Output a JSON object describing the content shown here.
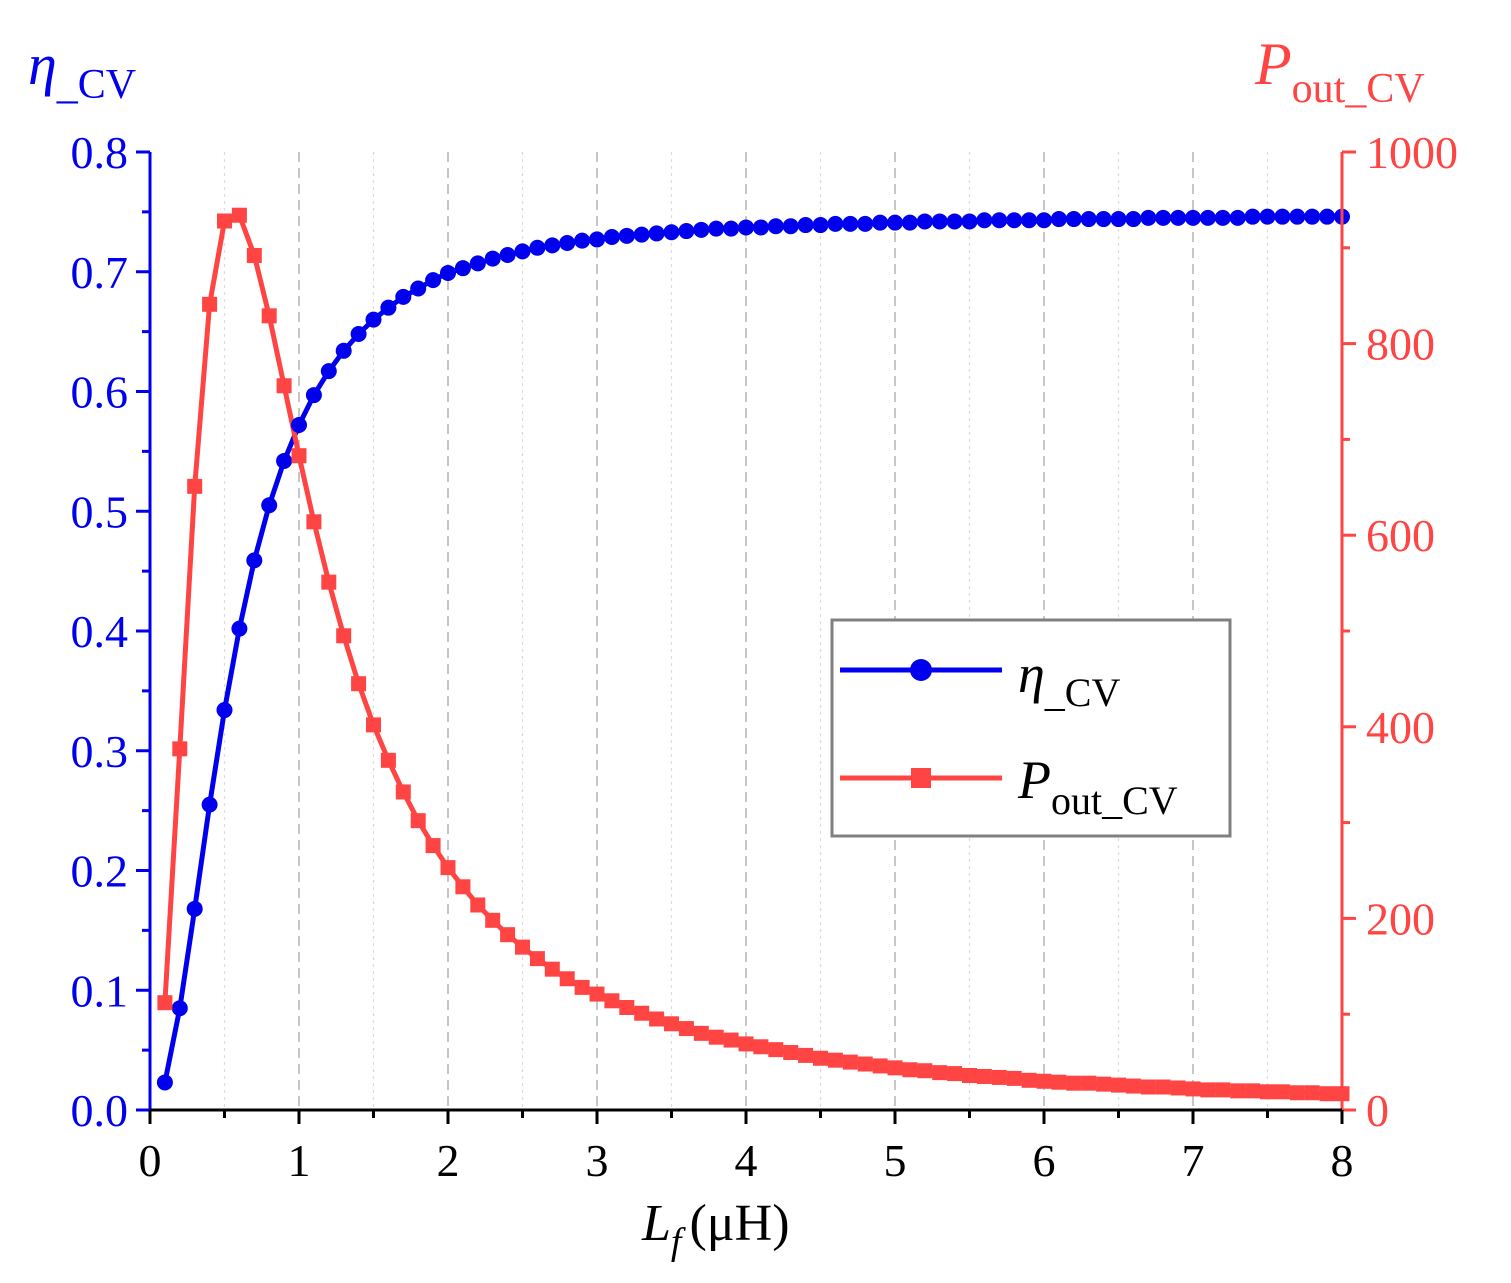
{
  "chart_data": {
    "type": "line",
    "xlabel": {
      "symbol": "L",
      "subscript": "f",
      "unit": "(μH)"
    },
    "xlim": [
      0,
      8
    ],
    "x_ticks": [
      "0",
      "1",
      "2",
      "3",
      "4",
      "5",
      "6",
      "7",
      "8"
    ],
    "y_left": {
      "label": {
        "symbol": "η",
        "subscript": "_CV"
      },
      "range": [
        0,
        0.8
      ],
      "ticks": [
        "0.0",
        "0.1",
        "0.2",
        "0.3",
        "0.4",
        "0.5",
        "0.6",
        "0.7",
        "0.8"
      ],
      "color": "#0000ee"
    },
    "y_right": {
      "label": {
        "symbol": "P",
        "subscript": "out_CV"
      },
      "range": [
        0,
        1000
      ],
      "ticks": [
        "0",
        "200",
        "400",
        "600",
        "800",
        "1000"
      ],
      "color": "#ff4444"
    },
    "grid": "vertical dashed",
    "legend": {
      "position": "center-right",
      "entries": [
        {
          "symbol": "η",
          "subscript": "_CV",
          "series": "eta_CV"
        },
        {
          "symbol": "P",
          "subscript": "out_CV",
          "series": "P_out_CV"
        }
      ]
    },
    "series": [
      {
        "name": "eta_CV",
        "axis": "left",
        "marker": "circle",
        "color": "#0000ee",
        "x": [
          0.1,
          0.2,
          0.3,
          0.4,
          0.5,
          0.6,
          0.7,
          0.8,
          0.9,
          1.0,
          1.1,
          1.2,
          1.3,
          1.4,
          1.5,
          1.6,
          1.7,
          1.8,
          1.9,
          2.0,
          2.1,
          2.2,
          2.3,
          2.4,
          2.5,
          2.6,
          2.7,
          2.8,
          2.9,
          3.0,
          3.1,
          3.2,
          3.3,
          3.4,
          3.5,
          3.6,
          3.7,
          3.8,
          3.9,
          4.0,
          4.1,
          4.2,
          4.3,
          4.4,
          4.5,
          4.6,
          4.7,
          4.8,
          4.9,
          5.0,
          5.1,
          5.2,
          5.3,
          5.4,
          5.5,
          5.6,
          5.7,
          5.8,
          5.9,
          6.0,
          6.1,
          6.2,
          6.3,
          6.4,
          6.5,
          6.6,
          6.7,
          6.8,
          6.9,
          7.0,
          7.1,
          7.2,
          7.3,
          7.4,
          7.5,
          7.6,
          7.7,
          7.8,
          7.9,
          8.0
        ],
        "y": [
          0.023,
          0.085,
          0.168,
          0.255,
          0.334,
          0.402,
          0.459,
          0.505,
          0.542,
          0.572,
          0.597,
          0.617,
          0.634,
          0.648,
          0.66,
          0.67,
          0.679,
          0.686,
          0.693,
          0.699,
          0.703,
          0.707,
          0.711,
          0.714,
          0.717,
          0.72,
          0.722,
          0.724,
          0.726,
          0.727,
          0.729,
          0.73,
          0.731,
          0.732,
          0.733,
          0.734,
          0.735,
          0.736,
          0.736,
          0.737,
          0.737,
          0.738,
          0.738,
          0.739,
          0.739,
          0.74,
          0.74,
          0.74,
          0.741,
          0.741,
          0.741,
          0.742,
          0.742,
          0.742,
          0.742,
          0.743,
          0.743,
          0.743,
          0.743,
          0.743,
          0.744,
          0.744,
          0.744,
          0.744,
          0.744,
          0.744,
          0.745,
          0.745,
          0.745,
          0.745,
          0.745,
          0.745,
          0.745,
          0.746,
          0.746,
          0.746,
          0.746,
          0.746,
          0.746,
          0.746
        ]
      },
      {
        "name": "P_out_CV",
        "axis": "right",
        "marker": "square",
        "color": "#ff4444",
        "x": [
          0.1,
          0.2,
          0.3,
          0.4,
          0.5,
          0.6,
          0.7,
          0.8,
          0.9,
          1.0,
          1.1,
          1.2,
          1.3,
          1.4,
          1.5,
          1.6,
          1.7,
          1.8,
          1.9,
          2.0,
          2.1,
          2.2,
          2.3,
          2.4,
          2.5,
          2.6,
          2.7,
          2.8,
          2.9,
          3.0,
          3.1,
          3.2,
          3.3,
          3.4,
          3.5,
          3.6,
          3.7,
          3.8,
          3.9,
          4.0,
          4.1,
          4.2,
          4.3,
          4.4,
          4.5,
          4.6,
          4.7,
          4.8,
          4.9,
          5.0,
          5.1,
          5.2,
          5.3,
          5.4,
          5.5,
          5.6,
          5.7,
          5.8,
          5.9,
          6.0,
          6.1,
          6.2,
          6.3,
          6.4,
          6.5,
          6.6,
          6.7,
          6.8,
          6.9,
          7.0,
          7.1,
          7.2,
          7.3,
          7.4,
          7.5,
          7.6,
          7.7,
          7.8,
          7.9,
          8.0
        ],
        "y": [
          112,
          377,
          651,
          841,
          928,
          934,
          892,
          829,
          756,
          683,
          614,
          551,
          495,
          445,
          402,
          365,
          332,
          302,
          276,
          253,
          233,
          214,
          198,
          183,
          170,
          158,
          147,
          137,
          128,
          121,
          114,
          107,
          101,
          95,
          90,
          85,
          80,
          76,
          73,
          69,
          66,
          63,
          60,
          57,
          54,
          52,
          50,
          48,
          46,
          44,
          42,
          41,
          39,
          38,
          36,
          35,
          34,
          33,
          31,
          30,
          29,
          28,
          28,
          27,
          26,
          25,
          24,
          24,
          23,
          22,
          21,
          21,
          20,
          20,
          19,
          19,
          18,
          18,
          17,
          17
        ]
      }
    ]
  }
}
